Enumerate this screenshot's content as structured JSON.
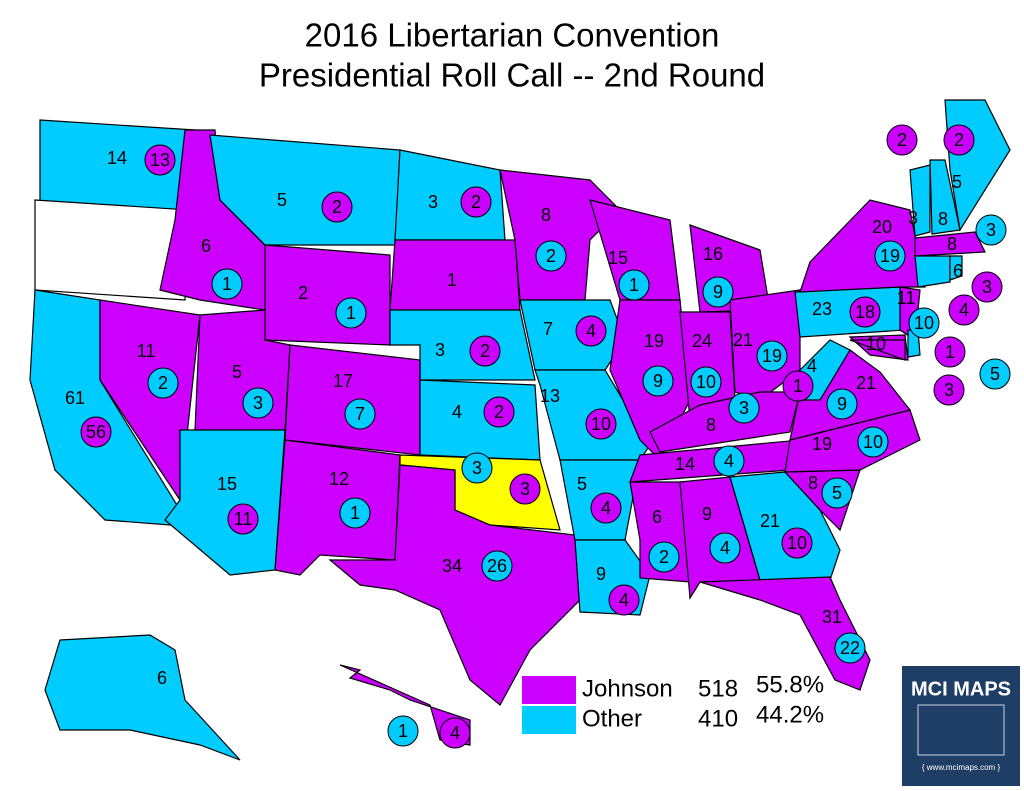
{
  "title": [
    "2016 Libertarian Convention",
    "Presidential Roll Call -- 2nd Round"
  ],
  "legend": [
    {
      "name": "Johnson",
      "color": "#cc00ff",
      "votes": 518,
      "percent": "55.8%"
    },
    {
      "name": "Other",
      "color": "#00ccff",
      "votes": 410,
      "percent": "44.2%"
    }
  ],
  "logo": {
    "title": "MCI MAPS",
    "url": "{ www.mcimaps.com }"
  },
  "states": [
    {
      "fill": "#00ccff",
      "labels": [
        {
          "value": 14,
          "color": "#00ccff",
          "circled": false
        },
        {
          "value": 13,
          "color": "#cc00ff",
          "circled": true
        }
      ]
    },
    {
      "fill": "#ffffff",
      "labels": []
    },
    {
      "fill": "#cc00ff",
      "labels": [
        {
          "value": 6,
          "color": "#cc00ff",
          "circled": false
        },
        {
          "value": 1,
          "color": "#00ccff",
          "circled": true
        }
      ]
    },
    {
      "fill": "#00ccff",
      "labels": [
        {
          "value": 5,
          "color": "#00ccff",
          "circled": false
        },
        {
          "value": 2,
          "color": "#cc00ff",
          "circled": true
        }
      ]
    },
    {
      "fill": "#00ccff",
      "labels": [
        {
          "value": 3,
          "color": "#00ccff",
          "circled": false
        },
        {
          "value": 2,
          "color": "#cc00ff",
          "circled": true
        }
      ]
    },
    {
      "fill": "#cc00ff",
      "labels": [
        {
          "value": 1,
          "color": "#cc00ff",
          "circled": false
        }
      ]
    },
    {
      "fill": "#cc00ff",
      "labels": [
        {
          "value": 2,
          "color": "#cc00ff",
          "circled": false
        },
        {
          "value": 1,
          "color": "#00ccff",
          "circled": true
        }
      ]
    },
    {
      "fill": "#00ccff",
      "labels": [
        {
          "value": 3,
          "color": "#00ccff",
          "circled": false
        },
        {
          "value": 2,
          "color": "#cc00ff",
          "circled": true
        }
      ]
    },
    {
      "fill": "#00ccff",
      "labels": [
        {
          "value": 61,
          "color": "#00ccff",
          "circled": false
        },
        {
          "value": 56,
          "color": "#cc00ff",
          "circled": true
        }
      ]
    },
    {
      "fill": "#cc00ff",
      "labels": [
        {
          "value": 11,
          "color": "#cc00ff",
          "circled": false
        },
        {
          "value": 2,
          "color": "#00ccff",
          "circled": true
        }
      ]
    },
    {
      "fill": "#cc00ff",
      "labels": [
        {
          "value": 5,
          "color": "#cc00ff",
          "circled": false
        },
        {
          "value": 3,
          "color": "#00ccff",
          "circled": true
        }
      ]
    },
    {
      "fill": "#00ccff",
      "labels": [
        {
          "value": 15,
          "color": "#00ccff",
          "circled": false
        },
        {
          "value": 11,
          "color": "#cc00ff",
          "circled": true
        }
      ]
    },
    {
      "fill": "#cc00ff",
      "labels": [
        {
          "value": 17,
          "color": "#cc00ff",
          "circled": false
        },
        {
          "value": 7,
          "color": "#00ccff",
          "circled": true
        }
      ]
    },
    {
      "fill": "#cc00ff",
      "labels": [
        {
          "value": 12,
          "color": "#cc00ff",
          "circled": false
        },
        {
          "value": 1,
          "color": "#00ccff",
          "circled": true
        }
      ]
    },
    {
      "fill": "#00ccff",
      "labels": [
        {
          "value": 4,
          "color": "#00ccff",
          "circled": false
        },
        {
          "value": 2,
          "color": "#cc00ff",
          "circled": true
        }
      ]
    },
    {
      "fill": "#ffff00",
      "labels": [
        {
          "value": 3,
          "color": "#00ccff",
          "circled": true
        },
        {
          "value": 3,
          "color": "#cc00ff",
          "circled": true
        }
      ]
    },
    {
      "fill": "#cc00ff",
      "labels": [
        {
          "value": 34,
          "color": "#cc00ff",
          "circled": false
        },
        {
          "value": 26,
          "color": "#00ccff",
          "circled": true
        }
      ]
    },
    {
      "fill": "#cc00ff",
      "labels": [
        {
          "value": 8,
          "color": "#cc00ff",
          "circled": false
        },
        {
          "value": 2,
          "color": "#00ccff",
          "circled": true
        }
      ]
    },
    {
      "fill": "#00ccff",
      "labels": [
        {
          "value": 7,
          "color": "#00ccff",
          "circled": false
        },
        {
          "value": 4,
          "color": "#cc00ff",
          "circled": true
        }
      ]
    },
    {
      "fill": "#00ccff",
      "labels": [
        {
          "value": 13,
          "color": "#00ccff",
          "circled": false
        },
        {
          "value": 10,
          "color": "#cc00ff",
          "circled": true
        }
      ]
    },
    {
      "fill": "#00ccff",
      "labels": [
        {
          "value": 5,
          "color": "#00ccff",
          "circled": false
        },
        {
          "value": 4,
          "color": "#cc00ff",
          "circled": true
        }
      ]
    },
    {
      "fill": "#00ccff",
      "labels": [
        {
          "value": 9,
          "color": "#00ccff",
          "circled": false
        },
        {
          "value": 4,
          "color": "#cc00ff",
          "circled": true
        }
      ]
    },
    {
      "fill": "#cc00ff",
      "labels": [
        {
          "value": 15,
          "color": "#cc00ff",
          "circled": false
        },
        {
          "value": 1,
          "color": "#00ccff",
          "circled": true
        }
      ]
    },
    {
      "fill": "#cc00ff",
      "labels": [
        {
          "value": 19,
          "color": "#cc00ff",
          "circled": false
        },
        {
          "value": 9,
          "color": "#00ccff",
          "circled": true
        }
      ]
    },
    {
      "fill": "#cc00ff",
      "labels": [
        {
          "value": 16,
          "color": "#cc00ff",
          "circled": false
        },
        {
          "value": 9,
          "color": "#00ccff",
          "circled": true
        }
      ]
    },
    {
      "fill": "#cc00ff",
      "labels": [
        {
          "value": 24,
          "color": "#cc00ff",
          "circled": false
        },
        {
          "value": 10,
          "color": "#00ccff",
          "circled": true
        }
      ]
    },
    {
      "fill": "#cc00ff",
      "labels": [
        {
          "value": 21,
          "color": "#cc00ff",
          "circled": false
        },
        {
          "value": 19,
          "color": "#00ccff",
          "circled": true
        }
      ]
    },
    {
      "fill": "#cc00ff",
      "labels": [
        {
          "value": 8,
          "color": "#cc00ff",
          "circled": false
        },
        {
          "value": 3,
          "color": "#00ccff",
          "circled": true
        }
      ]
    },
    {
      "fill": "#cc00ff",
      "labels": [
        {
          "value": 14,
          "color": "#cc00ff",
          "circled": false
        },
        {
          "value": 4,
          "color": "#00ccff",
          "circled": true
        }
      ]
    },
    {
      "fill": "#cc00ff",
      "labels": [
        {
          "value": 6,
          "color": "#cc00ff",
          "circled": false
        },
        {
          "value": 2,
          "color": "#00ccff",
          "circled": true
        }
      ]
    },
    {
      "fill": "#cc00ff",
      "labels": [
        {
          "value": 9,
          "color": "#cc00ff",
          "circled": false
        },
        {
          "value": 4,
          "color": "#00ccff",
          "circled": true
        }
      ]
    },
    {
      "fill": "#00ccff",
      "labels": [
        {
          "value": 21,
          "color": "#00ccff",
          "circled": false
        },
        {
          "value": 10,
          "color": "#cc00ff",
          "circled": true
        }
      ]
    },
    {
      "fill": "#cc00ff",
      "labels": [
        {
          "value": 31,
          "color": "#cc00ff",
          "circled": false
        },
        {
          "value": 22,
          "color": "#00ccff",
          "circled": true
        }
      ]
    },
    {
      "fill": "#cc00ff",
      "labels": [
        {
          "value": 8,
          "color": "#cc00ff",
          "circled": false
        },
        {
          "value": 5,
          "color": "#00ccff",
          "circled": true
        }
      ]
    },
    {
      "fill": "#cc00ff",
      "labels": [
        {
          "value": 19,
          "color": "#cc00ff",
          "circled": false
        },
        {
          "value": 10,
          "color": "#00ccff",
          "circled": true
        }
      ]
    },
    {
      "fill": "#cc00ff",
      "labels": [
        {
          "value": 21,
          "color": "#cc00ff",
          "circled": false
        },
        {
          "value": 9,
          "color": "#00ccff",
          "circled": true
        }
      ]
    },
    {
      "fill": "#00ccff",
      "labels": [
        {
          "value": 4,
          "color": "#00ccff",
          "circled": false
        },
        {
          "value": 1,
          "color": "#cc00ff",
          "circled": true
        }
      ]
    },
    {
      "fill": "#00ccff",
      "labels": [
        {
          "value": 23,
          "color": "#00ccff",
          "circled": false
        },
        {
          "value": 18,
          "color": "#cc00ff",
          "circled": true
        }
      ]
    },
    {
      "fill": "#cc00ff",
      "labels": [
        {
          "value": 20,
          "color": "#cc00ff",
          "circled": false
        },
        {
          "value": 19,
          "color": "#00ccff",
          "circled": true
        }
      ]
    },
    {
      "fill": "#cc00ff",
      "labels": [
        {
          "value": 11,
          "color": "#cc00ff",
          "circled": false
        },
        {
          "value": 10,
          "color": "#00ccff",
          "circled": true
        }
      ]
    },
    {
      "fill": "#cc00ff",
      "labels": [
        {
          "value": 10,
          "color": "#cc00ff",
          "circled": false
        },
        {
          "value": 5,
          "color": "#00ccff",
          "circled": true
        }
      ]
    },
    {
      "fill": "#00ccff",
      "labels": [
        {
          "value": 1,
          "color": "#cc00ff",
          "circled": true
        }
      ]
    },
    {
      "fill": "#cc00ff",
      "labels": [
        {
          "value": 3,
          "color": "#cc00ff",
          "circled": true
        }
      ]
    },
    {
      "fill": "#00ccff",
      "labels": [
        {
          "value": 3,
          "color": "#00ccff",
          "circled": false
        },
        {
          "value": 2,
          "color": "#cc00ff",
          "circled": true
        }
      ]
    },
    {
      "fill": "#00ccff",
      "labels": [
        {
          "value": 8,
          "color": "#00ccff",
          "circled": false
        }
      ]
    },
    {
      "fill": "#00ccff",
      "labels": [
        {
          "value": 5,
          "color": "#00ccff",
          "circled": false
        },
        {
          "value": 2,
          "color": "#cc00ff",
          "circled": true
        }
      ]
    },
    {
      "fill": "#cc00ff",
      "labels": [
        {
          "value": 8,
          "color": "#cc00ff",
          "circled": false
        },
        {
          "value": 3,
          "color": "#00ccff",
          "circled": true
        }
      ]
    },
    {
      "fill": "#00ccff",
      "labels": [
        {
          "value": 6,
          "color": "#00ccff",
          "circled": false
        },
        {
          "value": 4,
          "color": "#cc00ff",
          "circled": true
        }
      ]
    },
    {
      "fill": "#00ccff",
      "labels": [
        {
          "value": 3,
          "color": "#cc00ff",
          "circled": true
        }
      ]
    },
    {
      "fill": "#00ccff",
      "labels": [
        {
          "value": 6,
          "color": "#00ccff",
          "circled": false
        }
      ]
    },
    {
      "fill": "#cc00ff",
      "labels": [
        {
          "value": 1,
          "color": "#00ccff",
          "circled": true
        },
        {
          "value": 4,
          "color": "#cc00ff",
          "circled": true
        }
      ]
    }
  ]
}
